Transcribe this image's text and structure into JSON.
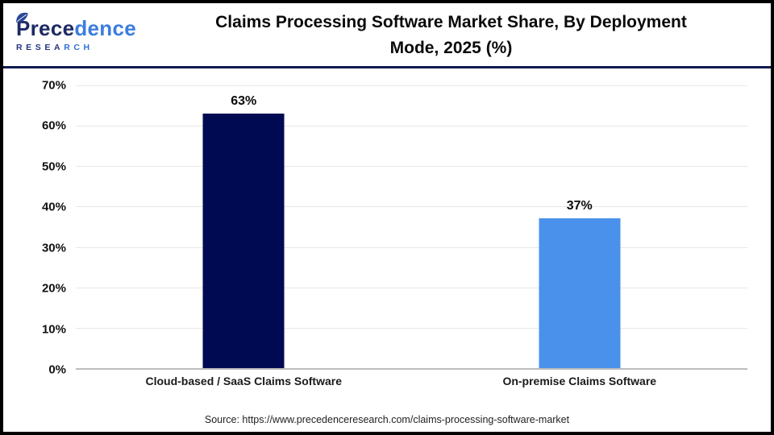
{
  "header": {
    "logo": {
      "part1": "Prece",
      "part2": "dence",
      "sub1": "RESEA",
      "sub2": "RCH",
      "leaf_color": "#2a4796"
    },
    "title_line1": "Claims Processing Software Market Share, By Deployment",
    "title_line2": "Mode, 2025 (%)"
  },
  "chart_data": {
    "type": "bar",
    "title": "Claims Processing Software Market Share, By Deployment Mode, 2025 (%)",
    "categories": [
      "Cloud-based / SaaS Claims Software",
      "On-premise Claims Software"
    ],
    "values": [
      63,
      37
    ],
    "value_labels": [
      "63%",
      "37%"
    ],
    "bar_colors": [
      "#000a52",
      "#4a91ec"
    ],
    "xlabel": "",
    "ylabel": "",
    "ylim": [
      0,
      70
    ],
    "y_ticks": [
      "70%",
      "60%",
      "50%",
      "40%",
      "30%",
      "20%",
      "10%",
      "0%"
    ],
    "grid": true,
    "gridline_color": "#e7e7e7",
    "legend": "none"
  },
  "source": {
    "text": "Source: https://www.precedenceresearch.com/claims-processing-software-market"
  }
}
